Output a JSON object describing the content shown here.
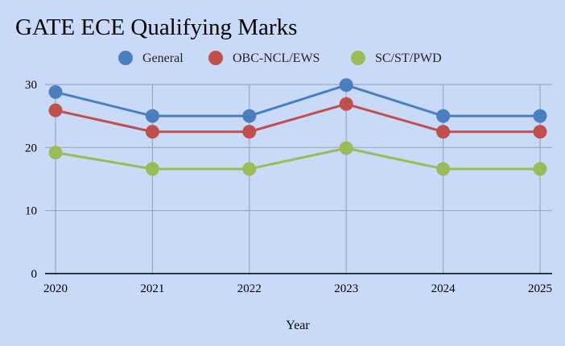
{
  "chart_data": {
    "type": "line",
    "title": "GATE ECE Qualifying Marks",
    "xlabel": "Year",
    "ylabel": "",
    "x": [
      2020,
      2021,
      2022,
      2023,
      2024,
      2025
    ],
    "ylim": [
      0,
      30
    ],
    "yticks": [
      0,
      10,
      20,
      30
    ],
    "grid": true,
    "legend_position": "top",
    "series": [
      {
        "name": "General",
        "color": "#4a7ebf",
        "values": [
          28.8,
          25,
          25,
          29.9,
          25,
          25
        ]
      },
      {
        "name": "OBC-NCL/EWS",
        "color": "#c0504d",
        "values": [
          25.9,
          22.5,
          22.5,
          26.9,
          22.5,
          22.5
        ]
      },
      {
        "name": "SC/ST/PWD",
        "color": "#9bbb59",
        "values": [
          19.2,
          16.6,
          16.6,
          19.9,
          16.6,
          16.6
        ]
      }
    ]
  }
}
